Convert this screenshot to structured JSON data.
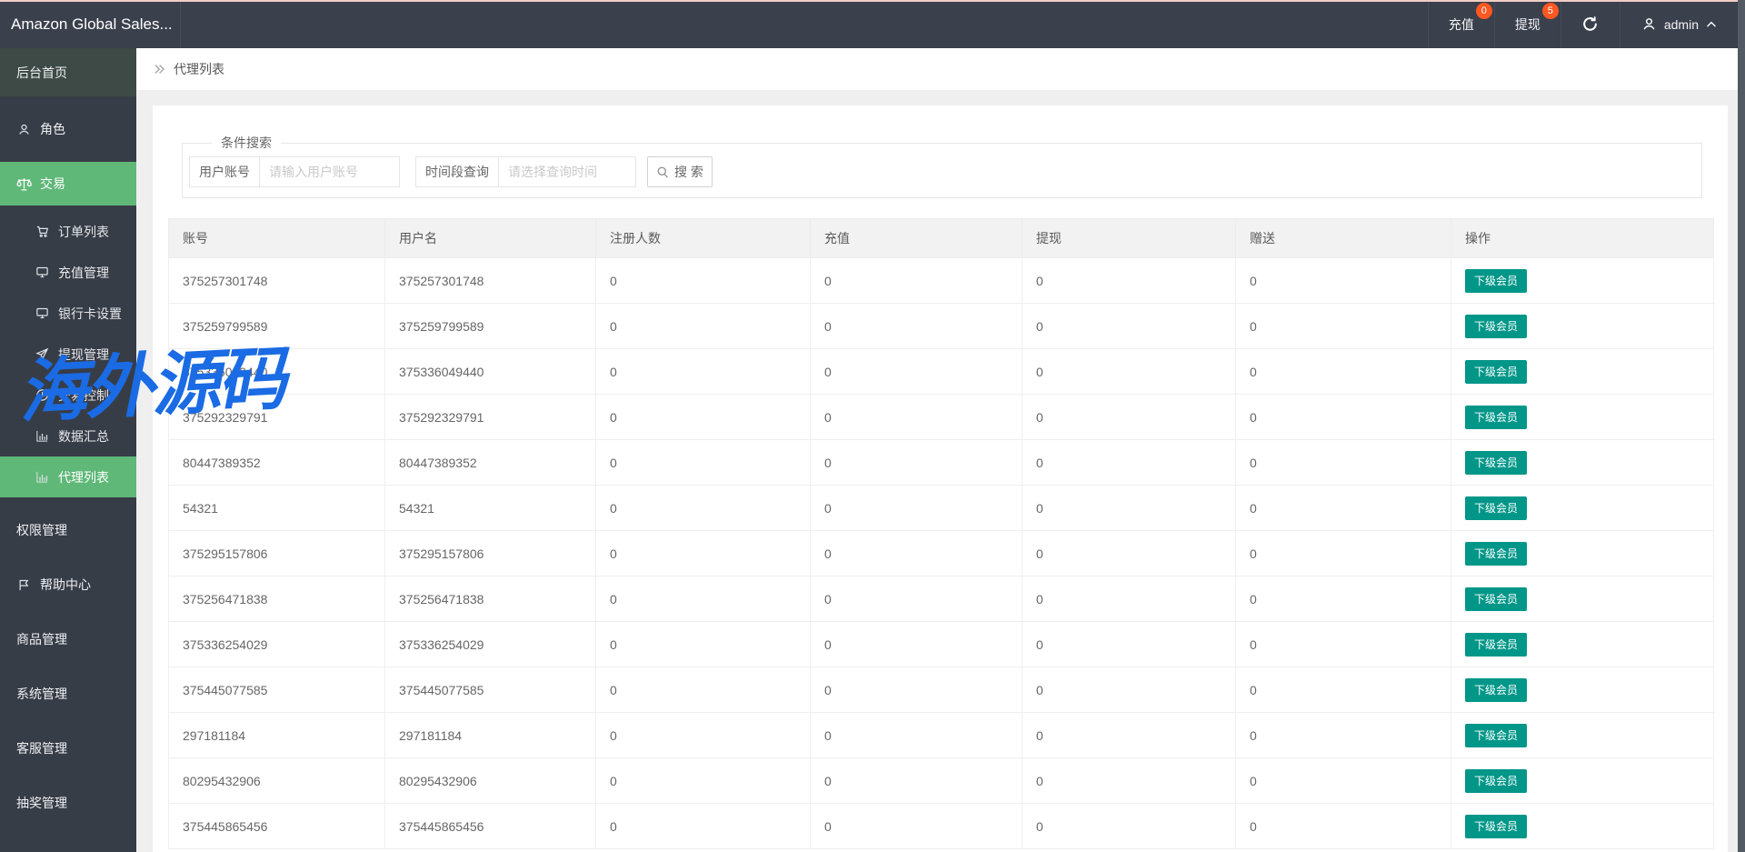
{
  "topbar": {
    "title": "Amazon Global Sales...",
    "recharge": {
      "label": "充值",
      "badge": "0"
    },
    "withdraw": {
      "label": "提现",
      "badge": "5"
    },
    "user": {
      "name": "admin"
    }
  },
  "sidebar": {
    "items": [
      {
        "label": "后台首页",
        "type": "home",
        "icon": null,
        "active": false
      },
      {
        "label": "角色",
        "type": "parent",
        "icon": "user",
        "active": false
      },
      {
        "label": "交易",
        "type": "parent",
        "icon": "scales",
        "active": true
      },
      {
        "label": "订单列表",
        "type": "sub",
        "icon": "cart",
        "active": false
      },
      {
        "label": "充值管理",
        "type": "sub",
        "icon": "monitor",
        "active": false
      },
      {
        "label": "银行卡设置",
        "type": "sub",
        "icon": "monitor",
        "active": false
      },
      {
        "label": "提现管理",
        "type": "sub",
        "icon": "send",
        "active": false
      },
      {
        "label": "交易控制",
        "type": "sub",
        "icon": "clock",
        "active": false
      },
      {
        "label": "数据汇总",
        "type": "sub",
        "icon": "chart",
        "active": false
      },
      {
        "label": "代理列表",
        "type": "sub",
        "icon": "chart",
        "active": true
      },
      {
        "label": "权限管理",
        "type": "parent",
        "icon": null,
        "active": false
      },
      {
        "label": "帮助中心",
        "type": "parent",
        "icon": "flag",
        "active": false
      },
      {
        "label": "商品管理",
        "type": "parent",
        "icon": null,
        "active": false
      },
      {
        "label": "系统管理",
        "type": "parent",
        "icon": null,
        "active": false
      },
      {
        "label": "客服管理",
        "type": "parent",
        "icon": null,
        "active": false
      },
      {
        "label": "抽奖管理",
        "type": "parent",
        "icon": null,
        "active": false
      }
    ]
  },
  "breadcrumb": {
    "title": "代理列表"
  },
  "search": {
    "legend": "条件搜索",
    "fields": [
      {
        "label": "用户账号",
        "placeholder": "请输入用户账号"
      },
      {
        "label": "时间段查询",
        "placeholder": "请选择查询时间"
      }
    ],
    "button": "搜 索"
  },
  "table": {
    "columns": [
      "账号",
      "用户名",
      "注册人数",
      "充值",
      "提现",
      "赠送",
      "操作"
    ],
    "action_label": "下级会员",
    "rows": [
      {
        "account": "375257301748",
        "username": "375257301748",
        "registered": "0",
        "recharge": "0",
        "withdraw": "0",
        "gift": "0"
      },
      {
        "account": "375259799589",
        "username": "375259799589",
        "registered": "0",
        "recharge": "0",
        "withdraw": "0",
        "gift": "0"
      },
      {
        "account": "375336049440",
        "username": "375336049440",
        "registered": "0",
        "recharge": "0",
        "withdraw": "0",
        "gift": "0"
      },
      {
        "account": "375292329791",
        "username": "375292329791",
        "registered": "0",
        "recharge": "0",
        "withdraw": "0",
        "gift": "0"
      },
      {
        "account": "80447389352",
        "username": "80447389352",
        "registered": "0",
        "recharge": "0",
        "withdraw": "0",
        "gift": "0"
      },
      {
        "account": "54321",
        "username": "54321",
        "registered": "0",
        "recharge": "0",
        "withdraw": "0",
        "gift": "0"
      },
      {
        "account": "375295157806",
        "username": "375295157806",
        "registered": "0",
        "recharge": "0",
        "withdraw": "0",
        "gift": "0"
      },
      {
        "account": "375256471838",
        "username": "375256471838",
        "registered": "0",
        "recharge": "0",
        "withdraw": "0",
        "gift": "0"
      },
      {
        "account": "375336254029",
        "username": "375336254029",
        "registered": "0",
        "recharge": "0",
        "withdraw": "0",
        "gift": "0"
      },
      {
        "account": "375445077585",
        "username": "375445077585",
        "registered": "0",
        "recharge": "0",
        "withdraw": "0",
        "gift": "0"
      },
      {
        "account": "297181184",
        "username": "297181184",
        "registered": "0",
        "recharge": "0",
        "withdraw": "0",
        "gift": "0"
      },
      {
        "account": "80295432906",
        "username": "80295432906",
        "registered": "0",
        "recharge": "0",
        "withdraw": "0",
        "gift": "0"
      },
      {
        "account": "375445865456",
        "username": "375445865456",
        "registered": "0",
        "recharge": "0",
        "withdraw": "0",
        "gift": "0"
      }
    ]
  },
  "watermark": "海外源码",
  "colors": {
    "sidebar_active_green": "#5FB878",
    "action_button_teal": "#009688",
    "badge_orange": "#FF5722",
    "watermark_blue": "#1A6BE4",
    "topbar_dark": "#3A404C"
  }
}
